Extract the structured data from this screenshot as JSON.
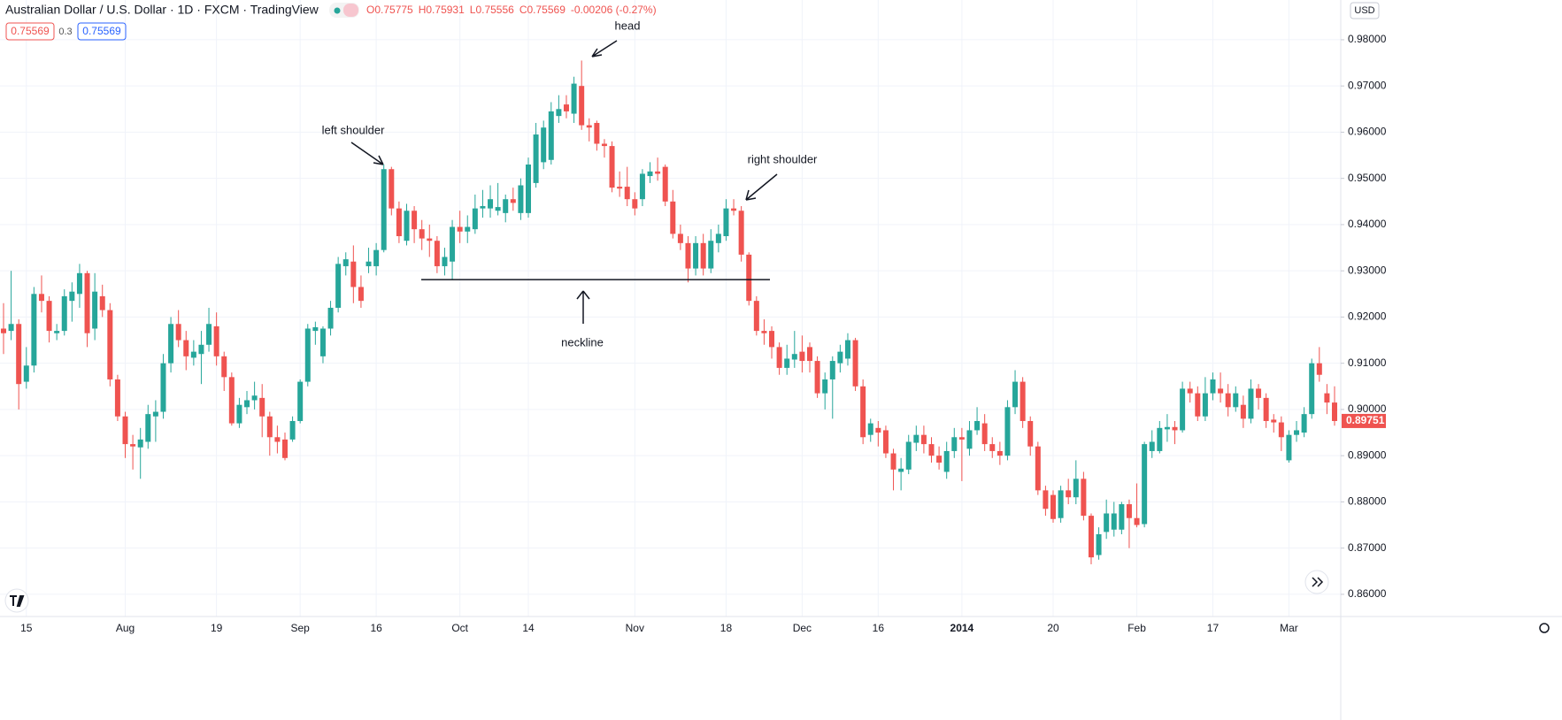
{
  "header": {
    "title": "Australian Dollar / U.S. Dollar · 1D · FXCM · TradingView",
    "ohlc": [
      "O0.75775",
      "H0.75931",
      "L0.75556",
      "C0.75569",
      "-0.00206 (-0.27%)"
    ],
    "sell": "0.75569",
    "spread": "0.3",
    "buy": "0.75569",
    "currency": "USD"
  },
  "chart_data": {
    "type": "candlestick",
    "up_color": "#26a69a",
    "down_color": "#ef5350",
    "grid": true,
    "ylim": [
      0.8552,
      0.9886
    ],
    "yticks": [
      {
        "value": 0.86,
        "label": "0.86000"
      },
      {
        "value": 0.87,
        "label": "0.87000"
      },
      {
        "value": 0.88,
        "label": "0.88000"
      },
      {
        "value": 0.89,
        "label": "0.89000"
      },
      {
        "value": 0.9,
        "label": "0.90000"
      },
      {
        "value": 0.91,
        "label": "0.91000"
      },
      {
        "value": 0.92,
        "label": "0.92000"
      },
      {
        "value": 0.93,
        "label": "0.93000"
      },
      {
        "value": 0.94,
        "label": "0.94000"
      },
      {
        "value": 0.95,
        "label": "0.95000"
      },
      {
        "value": 0.96,
        "label": "0.96000"
      },
      {
        "value": 0.97,
        "label": "0.97000"
      },
      {
        "value": 0.98,
        "label": "0.98000"
      }
    ],
    "last_price": {
      "value": 0.89751,
      "label": "0.89751"
    },
    "annotations": {
      "head": "head",
      "left_shoulder": "left shoulder",
      "right_shoulder": "right shoulder",
      "neckline": "neckline",
      "neckline_level": 0.9281
    },
    "categories": [
      null,
      null,
      null,
      "15",
      null,
      null,
      null,
      null,
      null,
      null,
      null,
      null,
      null,
      null,
      null,
      null,
      "Aug",
      null,
      null,
      null,
      null,
      null,
      null,
      null,
      null,
      null,
      null,
      null,
      "19",
      null,
      null,
      null,
      null,
      null,
      null,
      null,
      null,
      null,
      null,
      "Sep",
      null,
      null,
      null,
      null,
      null,
      null,
      null,
      null,
      null,
      "16",
      null,
      null,
      null,
      null,
      null,
      null,
      null,
      null,
      null,
      null,
      "Oct",
      null,
      null,
      null,
      null,
      null,
      null,
      null,
      null,
      "14",
      null,
      null,
      null,
      null,
      null,
      null,
      null,
      null,
      null,
      null,
      null,
      null,
      null,
      "Nov",
      null,
      null,
      null,
      null,
      null,
      null,
      null,
      null,
      null,
      null,
      null,
      "18",
      null,
      null,
      null,
      null,
      null,
      null,
      null,
      null,
      null,
      "Dec",
      null,
      null,
      null,
      null,
      null,
      null,
      null,
      null,
      null,
      "16",
      null,
      null,
      null,
      null,
      null,
      null,
      null,
      null,
      null,
      null,
      "2014",
      null,
      null,
      null,
      null,
      null,
      null,
      null,
      null,
      null,
      null,
      null,
      "20",
      null,
      null,
      null,
      null,
      null,
      null,
      null,
      null,
      null,
      null,
      "Feb",
      null,
      null,
      null,
      null,
      null,
      null,
      null,
      null,
      null,
      "17",
      null,
      null,
      null,
      null,
      null,
      null,
      null,
      null,
      null,
      "Mar",
      null,
      null,
      null,
      null,
      null,
      null
    ],
    "candles": [
      [
        0.9175,
        0.923,
        0.912,
        0.9165
      ],
      [
        0.917,
        0.93,
        0.915,
        0.9185
      ],
      [
        0.9185,
        0.9195,
        0.9,
        0.9055
      ],
      [
        0.906,
        0.9135,
        0.9045,
        0.9095
      ],
      [
        0.9095,
        0.9265,
        0.908,
        0.925
      ],
      [
        0.925,
        0.929,
        0.921,
        0.9235
      ],
      [
        0.9235,
        0.9245,
        0.9145,
        0.917
      ],
      [
        0.9165,
        0.9185,
        0.915,
        0.917
      ],
      [
        0.917,
        0.926,
        0.916,
        0.9245
      ],
      [
        0.9235,
        0.9275,
        0.919,
        0.9255
      ],
      [
        0.925,
        0.9315,
        0.922,
        0.9295
      ],
      [
        0.9295,
        0.93,
        0.9135,
        0.9165
      ],
      [
        0.9175,
        0.9295,
        0.915,
        0.9255
      ],
      [
        0.9245,
        0.927,
        0.92,
        0.9215
      ],
      [
        0.9215,
        0.923,
        0.905,
        0.9065
      ],
      [
        0.9065,
        0.9075,
        0.8975,
        0.8985
      ],
      [
        0.8985,
        0.8995,
        0.8895,
        0.8925
      ],
      [
        0.8925,
        0.8945,
        0.887,
        0.892
      ],
      [
        0.8918,
        0.896,
        0.885,
        0.8935
      ],
      [
        0.893,
        0.901,
        0.8915,
        0.899
      ],
      [
        0.8985,
        0.902,
        0.893,
        0.8995
      ],
      [
        0.8995,
        0.912,
        0.898,
        0.91
      ],
      [
        0.91,
        0.92,
        0.908,
        0.9185
      ],
      [
        0.9185,
        0.9215,
        0.9135,
        0.915
      ],
      [
        0.915,
        0.917,
        0.9085,
        0.9115
      ],
      [
        0.9112,
        0.915,
        0.9095,
        0.9125
      ],
      [
        0.912,
        0.917,
        0.9055,
        0.914
      ],
      [
        0.914,
        0.922,
        0.9125,
        0.9185
      ],
      [
        0.918,
        0.921,
        0.9095,
        0.9115
      ],
      [
        0.9115,
        0.9125,
        0.904,
        0.907
      ],
      [
        0.907,
        0.908,
        0.8965,
        0.897
      ],
      [
        0.897,
        0.9025,
        0.896,
        0.901
      ],
      [
        0.9005,
        0.904,
        0.899,
        0.902
      ],
      [
        0.902,
        0.906,
        0.9,
        0.903
      ],
      [
        0.9025,
        0.9055,
        0.894,
        0.8985
      ],
      [
        0.8985,
        0.8995,
        0.89,
        0.894
      ],
      [
        0.894,
        0.8965,
        0.8905,
        0.893
      ],
      [
        0.8935,
        0.895,
        0.889,
        0.8895
      ],
      [
        0.8935,
        0.8985,
        0.893,
        0.8975
      ],
      [
        0.8975,
        0.9065,
        0.897,
        0.906
      ],
      [
        0.906,
        0.9185,
        0.905,
        0.9175
      ],
      [
        0.917,
        0.919,
        0.914,
        0.9178
      ],
      [
        0.9115,
        0.918,
        0.91,
        0.9175
      ],
      [
        0.9175,
        0.9235,
        0.916,
        0.922
      ],
      [
        0.922,
        0.933,
        0.921,
        0.9315
      ],
      [
        0.931,
        0.934,
        0.929,
        0.9325
      ],
      [
        0.932,
        0.9355,
        0.923,
        0.9265
      ],
      [
        0.9265,
        0.929,
        0.922,
        0.9235
      ],
      [
        0.931,
        0.935,
        0.9295,
        0.932
      ],
      [
        0.931,
        0.936,
        0.929,
        0.9345
      ],
      [
        0.9345,
        0.953,
        0.934,
        0.952
      ],
      [
        0.952,
        0.9525,
        0.942,
        0.9435
      ],
      [
        0.9435,
        0.945,
        0.936,
        0.9375
      ],
      [
        0.9365,
        0.9445,
        0.9355,
        0.943
      ],
      [
        0.943,
        0.944,
        0.936,
        0.939
      ],
      [
        0.939,
        0.941,
        0.9345,
        0.937
      ],
      [
        0.937,
        0.94,
        0.933,
        0.9365
      ],
      [
        0.9365,
        0.9375,
        0.9295,
        0.931
      ],
      [
        0.931,
        0.935,
        0.929,
        0.933
      ],
      [
        0.932,
        0.941,
        0.928,
        0.9395
      ],
      [
        0.9395,
        0.943,
        0.936,
        0.9385
      ],
      [
        0.9385,
        0.942,
        0.936,
        0.9395
      ],
      [
        0.939,
        0.9465,
        0.938,
        0.9435
      ],
      [
        0.9435,
        0.9475,
        0.9415,
        0.944
      ],
      [
        0.9435,
        0.9485,
        0.9415,
        0.9455
      ],
      [
        0.943,
        0.949,
        0.942,
        0.9438
      ],
      [
        0.9425,
        0.9465,
        0.9405,
        0.9455
      ],
      [
        0.9455,
        0.948,
        0.943,
        0.9447
      ],
      [
        0.9425,
        0.95,
        0.941,
        0.9485
      ],
      [
        0.9425,
        0.9545,
        0.9415,
        0.953
      ],
      [
        0.949,
        0.962,
        0.948,
        0.9595
      ],
      [
        0.9535,
        0.9625,
        0.952,
        0.961
      ],
      [
        0.954,
        0.9665,
        0.953,
        0.9645
      ],
      [
        0.9635,
        0.968,
        0.962,
        0.965
      ],
      [
        0.966,
        0.968,
        0.963,
        0.9645
      ],
      [
        0.964,
        0.972,
        0.962,
        0.9705
      ],
      [
        0.97,
        0.9755,
        0.9605,
        0.9615
      ],
      [
        0.9615,
        0.963,
        0.958,
        0.961
      ],
      [
        0.962,
        0.9625,
        0.956,
        0.9575
      ],
      [
        0.9575,
        0.9585,
        0.9545,
        0.957
      ],
      [
        0.957,
        0.958,
        0.947,
        0.948
      ],
      [
        0.9482,
        0.9515,
        0.946,
        0.9478
      ],
      [
        0.9482,
        0.9525,
        0.944,
        0.9455
      ],
      [
        0.9455,
        0.947,
        0.942,
        0.9435
      ],
      [
        0.9455,
        0.952,
        0.944,
        0.951
      ],
      [
        0.9505,
        0.9535,
        0.949,
        0.9515
      ],
      [
        0.9515,
        0.9545,
        0.9495,
        0.951
      ],
      [
        0.9525,
        0.953,
        0.944,
        0.945
      ],
      [
        0.945,
        0.9475,
        0.937,
        0.938
      ],
      [
        0.938,
        0.94,
        0.9345,
        0.936
      ],
      [
        0.936,
        0.9375,
        0.9275,
        0.9305
      ],
      [
        0.9305,
        0.9375,
        0.929,
        0.936
      ],
      [
        0.936,
        0.938,
        0.929,
        0.9305
      ],
      [
        0.9305,
        0.939,
        0.9295,
        0.9365
      ],
      [
        0.936,
        0.94,
        0.934,
        0.938
      ],
      [
        0.9375,
        0.9455,
        0.9365,
        0.9435
      ],
      [
        0.9435,
        0.9455,
        0.942,
        0.943
      ],
      [
        0.943,
        0.944,
        0.932,
        0.9335
      ],
      [
        0.9335,
        0.934,
        0.9225,
        0.9235
      ],
      [
        0.9235,
        0.9245,
        0.916,
        0.917
      ],
      [
        0.917,
        0.9195,
        0.914,
        0.9165
      ],
      [
        0.917,
        0.918,
        0.911,
        0.9135
      ],
      [
        0.9135,
        0.9145,
        0.9075,
        0.909
      ],
      [
        0.909,
        0.914,
        0.9075,
        0.911
      ],
      [
        0.9108,
        0.917,
        0.909,
        0.912
      ],
      [
        0.9125,
        0.916,
        0.908,
        0.9105
      ],
      [
        0.9135,
        0.9145,
        0.908,
        0.9105
      ],
      [
        0.9105,
        0.9115,
        0.9025,
        0.9035
      ],
      [
        0.9035,
        0.908,
        0.9,
        0.9065
      ],
      [
        0.9065,
        0.9115,
        0.898,
        0.9105
      ],
      [
        0.91,
        0.914,
        0.908,
        0.9125
      ],
      [
        0.911,
        0.9165,
        0.9095,
        0.915
      ],
      [
        0.915,
        0.9155,
        0.904,
        0.905
      ],
      [
        0.905,
        0.9065,
        0.8925,
        0.894
      ],
      [
        0.8945,
        0.898,
        0.893,
        0.897
      ],
      [
        0.896,
        0.8975,
        0.892,
        0.895
      ],
      [
        0.8955,
        0.8965,
        0.8895,
        0.8905
      ],
      [
        0.8905,
        0.8915,
        0.8825,
        0.887
      ],
      [
        0.8865,
        0.8895,
        0.8825,
        0.8872
      ],
      [
        0.887,
        0.8945,
        0.886,
        0.893
      ],
      [
        0.8928,
        0.8965,
        0.891,
        0.8945
      ],
      [
        0.8945,
        0.8965,
        0.8905,
        0.8925
      ],
      [
        0.8925,
        0.894,
        0.8885,
        0.89
      ],
      [
        0.89,
        0.892,
        0.887,
        0.8885
      ],
      [
        0.8865,
        0.893,
        0.885,
        0.891
      ],
      [
        0.891,
        0.896,
        0.8895,
        0.894
      ],
      [
        0.894,
        0.896,
        0.8845,
        0.8935
      ],
      [
        0.8915,
        0.8975,
        0.89,
        0.8955
      ],
      [
        0.8955,
        0.9005,
        0.8945,
        0.8975
      ],
      [
        0.897,
        0.899,
        0.891,
        0.8925
      ],
      [
        0.8925,
        0.894,
        0.8895,
        0.891
      ],
      [
        0.891,
        0.893,
        0.888,
        0.89
      ],
      [
        0.89,
        0.902,
        0.889,
        0.9005
      ],
      [
        0.9005,
        0.9085,
        0.899,
        0.906
      ],
      [
        0.906,
        0.907,
        0.896,
        0.8975
      ],
      [
        0.8975,
        0.8985,
        0.89,
        0.892
      ],
      [
        0.892,
        0.893,
        0.8815,
        0.8825
      ],
      [
        0.8825,
        0.8835,
        0.877,
        0.8785
      ],
      [
        0.8815,
        0.8825,
        0.8755,
        0.8763
      ],
      [
        0.8765,
        0.8835,
        0.8755,
        0.8825
      ],
      [
        0.8825,
        0.885,
        0.8795,
        0.881
      ],
      [
        0.881,
        0.889,
        0.8795,
        0.885
      ],
      [
        0.885,
        0.8865,
        0.876,
        0.877
      ],
      [
        0.877,
        0.8775,
        0.8665,
        0.868
      ],
      [
        0.8685,
        0.8745,
        0.8675,
        0.873
      ],
      [
        0.8735,
        0.8805,
        0.872,
        0.8775
      ],
      [
        0.874,
        0.88,
        0.8725,
        0.8775
      ],
      [
        0.874,
        0.88,
        0.873,
        0.8795
      ],
      [
        0.8795,
        0.8805,
        0.87,
        0.8765
      ],
      [
        0.8765,
        0.884,
        0.8745,
        0.875
      ],
      [
        0.8752,
        0.893,
        0.8745,
        0.8925
      ],
      [
        0.891,
        0.8955,
        0.8895,
        0.893
      ],
      [
        0.891,
        0.8975,
        0.8905,
        0.896
      ],
      [
        0.8957,
        0.899,
        0.893,
        0.8962
      ],
      [
        0.8962,
        0.8975,
        0.8925,
        0.8955
      ],
      [
        0.8955,
        0.906,
        0.895,
        0.9045
      ],
      [
        0.9045,
        0.906,
        0.9015,
        0.9035
      ],
      [
        0.9035,
        0.905,
        0.8975,
        0.8985
      ],
      [
        0.8985,
        0.907,
        0.8975,
        0.9035
      ],
      [
        0.9035,
        0.908,
        0.902,
        0.9065
      ],
      [
        0.9045,
        0.908,
        0.9015,
        0.9035
      ],
      [
        0.9035,
        0.9055,
        0.8985,
        0.9005
      ],
      [
        0.9005,
        0.905,
        0.8995,
        0.9035
      ],
      [
        0.901,
        0.903,
        0.896,
        0.898
      ],
      [
        0.898,
        0.9065,
        0.897,
        0.9045
      ],
      [
        0.9045,
        0.9055,
        0.9,
        0.9025
      ],
      [
        0.9025,
        0.9035,
        0.896,
        0.8975
      ],
      [
        0.8978,
        0.899,
        0.895,
        0.8972
      ],
      [
        0.8972,
        0.8985,
        0.891,
        0.894
      ],
      [
        0.889,
        0.8955,
        0.8885,
        0.8945
      ],
      [
        0.8945,
        0.8975,
        0.893,
        0.8955
      ],
      [
        0.895,
        0.9005,
        0.894,
        0.899
      ],
      [
        0.899,
        0.911,
        0.898,
        0.91
      ],
      [
        0.91,
        0.9135,
        0.906,
        0.9075
      ],
      [
        0.9035,
        0.9055,
        0.899,
        0.9015
      ],
      [
        0.9015,
        0.905,
        0.8965,
        0.8975
      ]
    ]
  }
}
